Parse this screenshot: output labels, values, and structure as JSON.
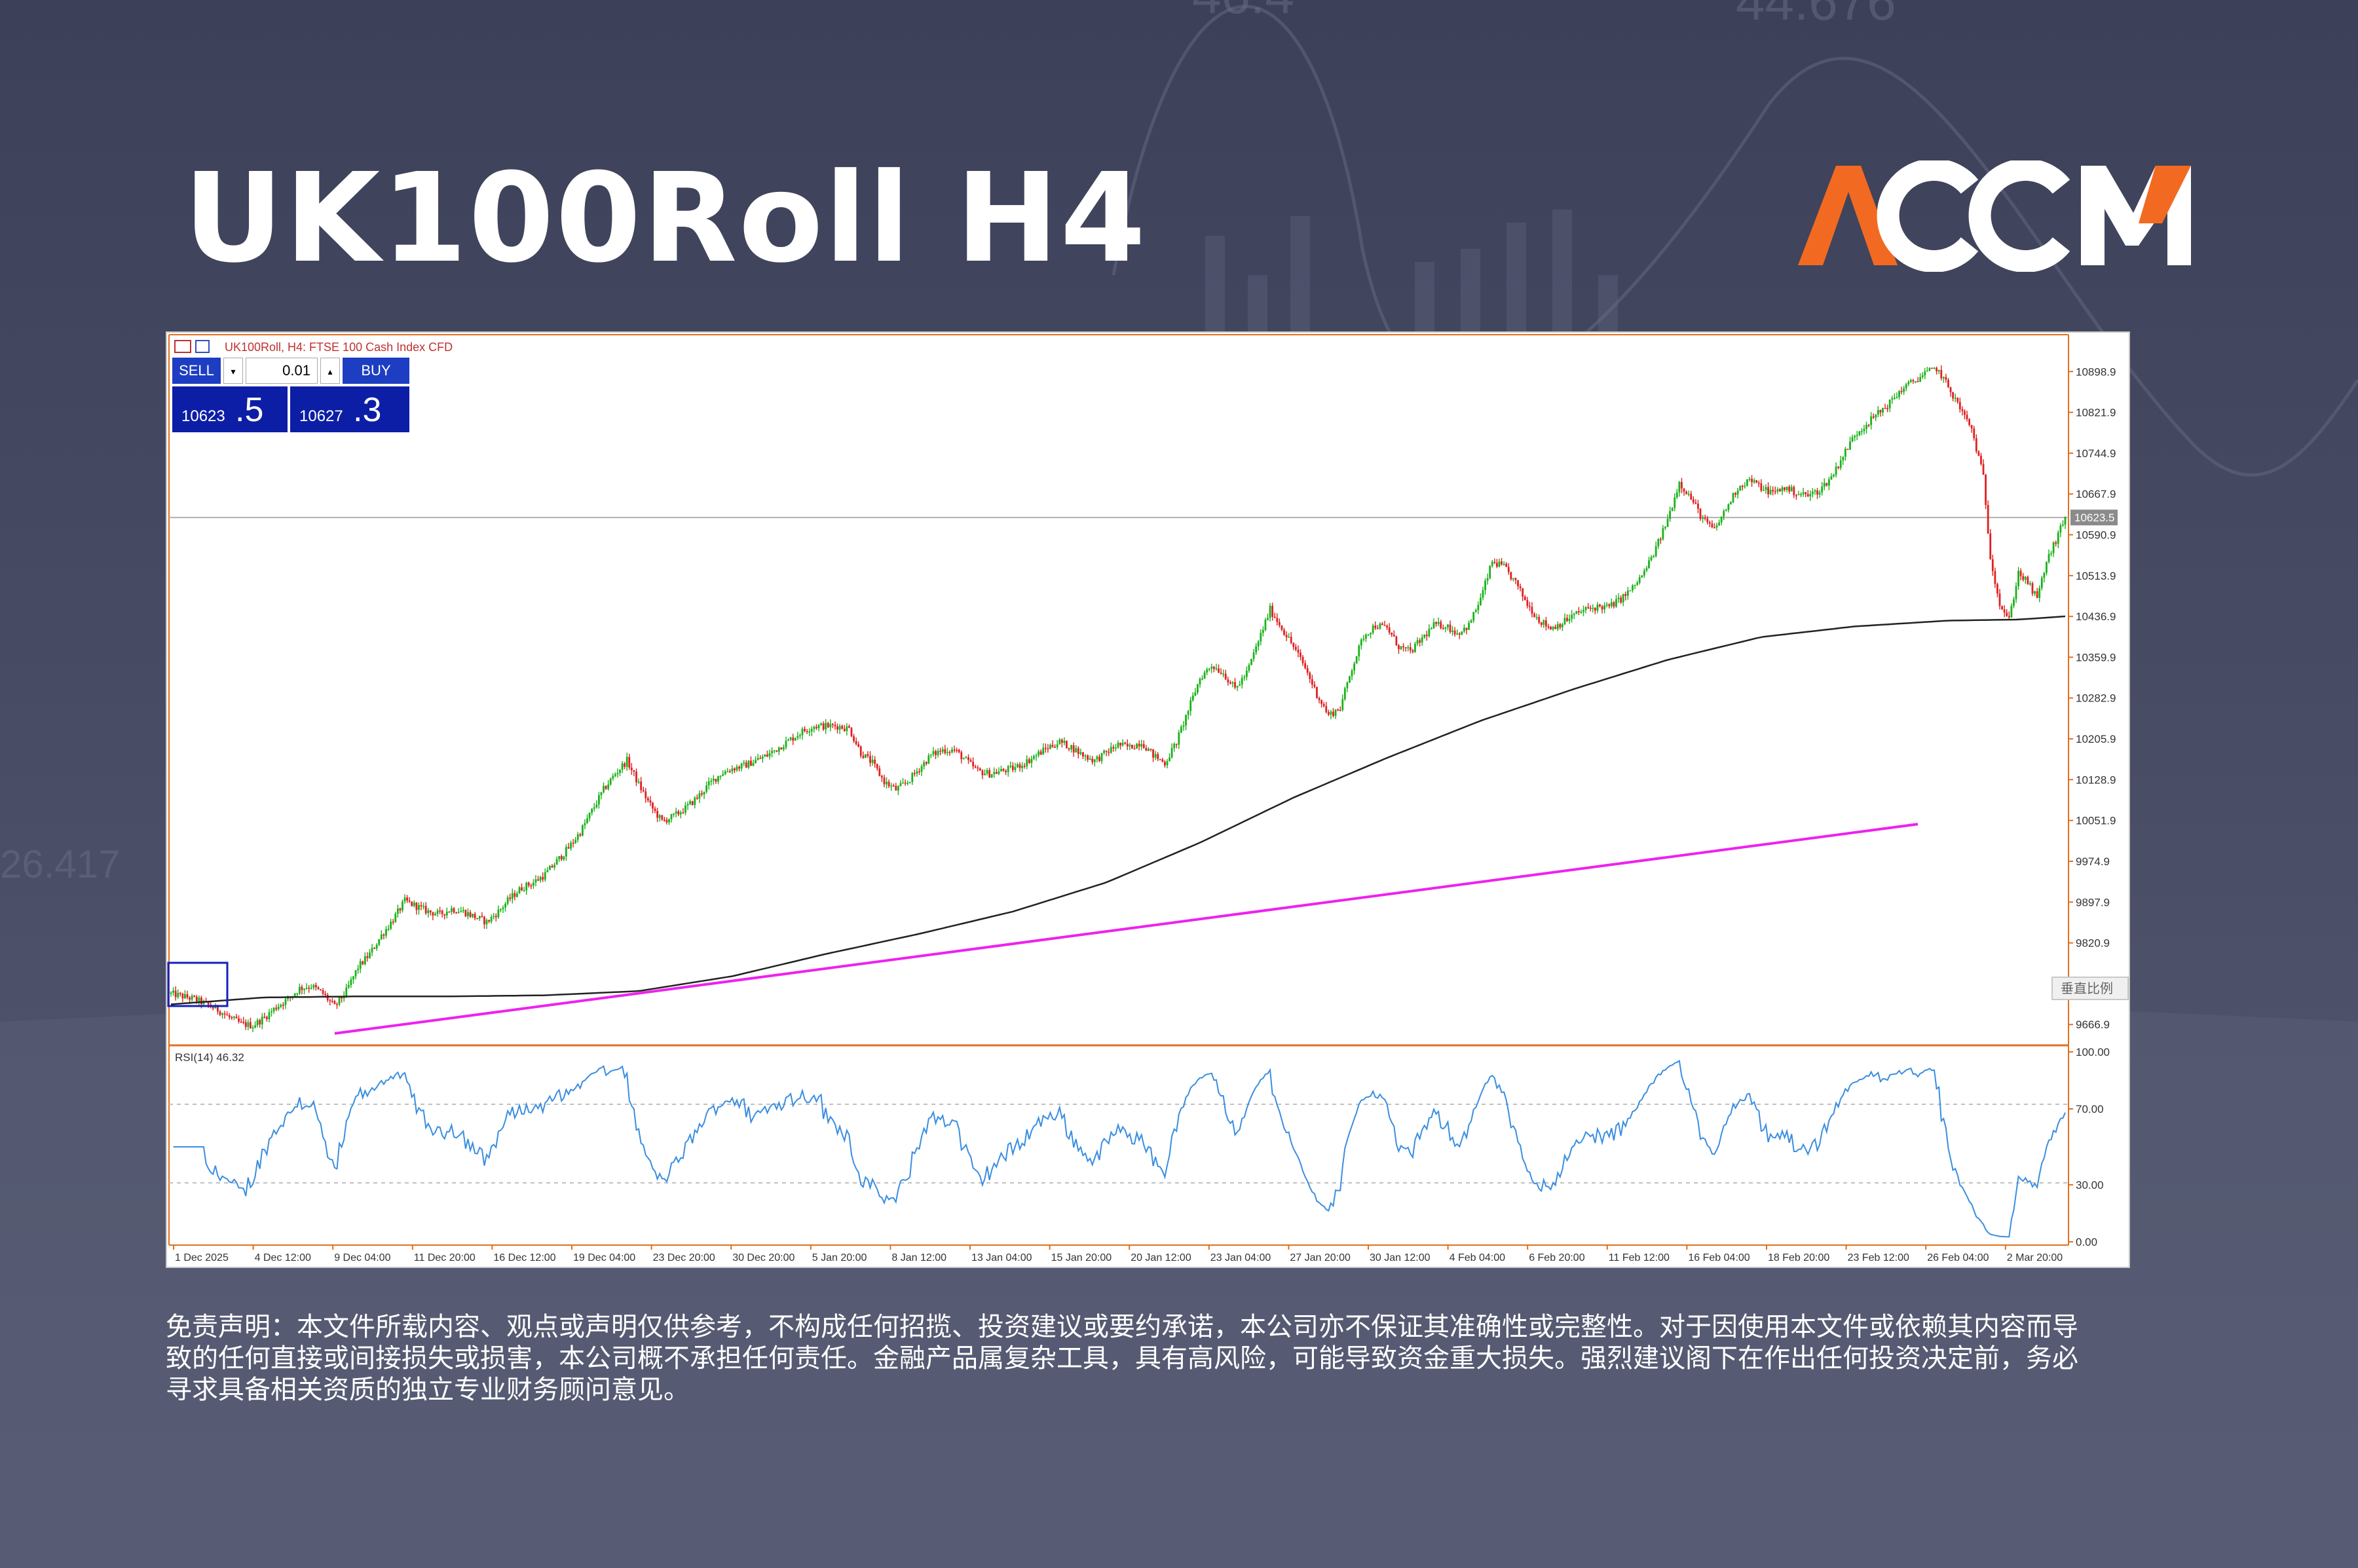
{
  "header": {
    "title": "UK100Roll H4",
    "logo_text": "ACCM",
    "logo_color": "#f26a21"
  },
  "chart_window": {
    "caption": "UK100Roll, H4:  FTSE 100 Cash Index CFD",
    "sell_label": "SELL",
    "buy_label": "BUY",
    "lot_value": "0.01",
    "sell_price_small": "10623",
    "sell_price_big": ".5",
    "buy_price_small": "10627",
    "buy_price_big": ".3",
    "current_price_label": "10623.5",
    "scale_button": "垂直比例",
    "rsi_label": "RSI(14) 46.32"
  },
  "chart_data": [
    {
      "type": "candlestick",
      "symbol": "UK100Roll",
      "timeframe": "H4",
      "price_axis_ticks": [
        "10898.9",
        "10821.9",
        "10744.9",
        "10667.9",
        "10590.9",
        "10513.9",
        "10436.9",
        "10359.9",
        "10282.9",
        "10205.9",
        "10128.9",
        "10051.9",
        "9974.9",
        "9897.9",
        "9820.9",
        "9743.9",
        "9666.9"
      ],
      "time_axis_ticks": [
        "1 Dec 2025",
        "4 Dec 12:00",
        "9 Dec 04:00",
        "11 Dec 20:00",
        "16 Dec 12:00",
        "19 Dec 04:00",
        "23 Dec 20:00",
        "30 Dec 20:00",
        "5 Jan 20:00",
        "8 Jan 12:00",
        "13 Jan 04:00",
        "15 Jan 20:00",
        "20 Jan 12:00",
        "23 Jan 04:00",
        "27 Jan 20:00",
        "30 Jan 12:00",
        "4 Feb 04:00",
        "6 Feb 20:00",
        "11 Feb 12:00",
        "16 Feb 04:00",
        "18 Feb 20:00",
        "23 Feb 12:00",
        "26 Feb 04:00",
        "2 Mar 20:00"
      ],
      "ylim": [
        9640,
        10940
      ],
      "current_price": 10623.5,
      "close_path": [
        [
          0,
          9725
        ],
        [
          5,
          9720
        ],
        [
          10,
          9715
        ],
        [
          15,
          9705
        ],
        [
          20,
          9695
        ],
        [
          25,
          9680
        ],
        [
          30,
          9668
        ],
        [
          35,
          9665
        ],
        [
          40,
          9680
        ],
        [
          45,
          9700
        ],
        [
          50,
          9715
        ],
        [
          55,
          9735
        ],
        [
          60,
          9740
        ],
        [
          65,
          9725
        ],
        [
          70,
          9700
        ],
        [
          75,
          9730
        ],
        [
          80,
          9775
        ],
        [
          85,
          9800
        ],
        [
          90,
          9835
        ],
        [
          95,
          9865
        ],
        [
          100,
          9900
        ],
        [
          105,
          9890
        ],
        [
          110,
          9880
        ],
        [
          115,
          9875
        ],
        [
          120,
          9885
        ],
        [
          125,
          9880
        ],
        [
          130,
          9870
        ],
        [
          135,
          9860
        ],
        [
          140,
          9880
        ],
        [
          145,
          9905
        ],
        [
          150,
          9925
        ],
        [
          155,
          9935
        ],
        [
          160,
          9950
        ],
        [
          165,
          9975
        ],
        [
          170,
          10000
        ],
        [
          175,
          10030
        ],
        [
          180,
          10070
        ],
        [
          185,
          10110
        ],
        [
          190,
          10140
        ],
        [
          195,
          10165
        ],
        [
          200,
          10120
        ],
        [
          205,
          10080
        ],
        [
          210,
          10050
        ],
        [
          215,
          10060
        ],
        [
          220,
          10075
        ],
        [
          225,
          10095
        ],
        [
          230,
          10120
        ],
        [
          235,
          10140
        ],
        [
          240,
          10150
        ],
        [
          245,
          10155
        ],
        [
          250,
          10165
        ],
        [
          255,
          10175
        ],
        [
          260,
          10190
        ],
        [
          265,
          10205
        ],
        [
          270,
          10220
        ],
        [
          275,
          10230
        ],
        [
          280,
          10230
        ],
        [
          285,
          10230
        ],
        [
          290,
          10225
        ],
        [
          295,
          10180
        ],
        [
          300,
          10160
        ],
        [
          305,
          10125
        ],
        [
          310,
          10110
        ],
        [
          315,
          10125
        ],
        [
          320,
          10150
        ],
        [
          325,
          10175
        ],
        [
          330,
          10185
        ],
        [
          335,
          10185
        ],
        [
          340,
          10165
        ],
        [
          345,
          10145
        ],
        [
          350,
          10140
        ],
        [
          355,
          10145
        ],
        [
          360,
          10150
        ],
        [
          365,
          10160
        ],
        [
          370,
          10175
        ],
        [
          375,
          10190
        ],
        [
          380,
          10200
        ],
        [
          385,
          10190
        ],
        [
          390,
          10175
        ],
        [
          395,
          10165
        ],
        [
          400,
          10180
        ],
        [
          405,
          10195
        ],
        [
          410,
          10190
        ],
        [
          415,
          10200
        ],
        [
          420,
          10175
        ],
        [
          425,
          10160
        ],
        [
          430,
          10200
        ],
        [
          435,
          10260
        ],
        [
          440,
          10320
        ],
        [
          445,
          10345
        ],
        [
          450,
          10330
        ],
        [
          455,
          10300
        ],
        [
          460,
          10330
        ],
        [
          465,
          10390
        ],
        [
          470,
          10450
        ],
        [
          475,
          10415
        ],
        [
          480,
          10380
        ],
        [
          485,
          10340
        ],
        [
          490,
          10290
        ],
        [
          495,
          10250
        ],
        [
          500,
          10265
        ],
        [
          505,
          10340
        ],
        [
          510,
          10400
        ],
        [
          515,
          10420
        ],
        [
          520,
          10415
        ],
        [
          525,
          10380
        ],
        [
          530,
          10370
        ],
        [
          535,
          10395
        ],
        [
          540,
          10420
        ],
        [
          545,
          10420
        ],
        [
          550,
          10405
        ],
        [
          555,
          10420
        ],
        [
          560,
          10470
        ],
        [
          565,
          10540
        ],
        [
          570,
          10530
        ],
        [
          575,
          10500
        ],
        [
          580,
          10460
        ],
        [
          585,
          10430
        ],
        [
          590,
          10415
        ],
        [
          595,
          10425
        ],
        [
          600,
          10440
        ],
        [
          605,
          10450
        ],
        [
          610,
          10455
        ],
        [
          615,
          10455
        ],
        [
          620,
          10470
        ],
        [
          625,
          10490
        ],
        [
          630,
          10520
        ],
        [
          635,
          10565
        ],
        [
          640,
          10620
        ],
        [
          645,
          10690
        ],
        [
          650,
          10660
        ],
        [
          655,
          10620
        ],
        [
          660,
          10600
        ],
        [
          665,
          10640
        ],
        [
          670,
          10680
        ],
        [
          675,
          10695
        ],
        [
          680,
          10680
        ],
        [
          685,
          10670
        ],
        [
          690,
          10680
        ],
        [
          695,
          10670
        ],
        [
          700,
          10665
        ],
        [
          705,
          10675
        ],
        [
          710,
          10700
        ],
        [
          715,
          10740
        ],
        [
          720,
          10780
        ],
        [
          725,
          10800
        ],
        [
          730,
          10820
        ],
        [
          735,
          10840
        ],
        [
          740,
          10865
        ],
        [
          745,
          10880
        ],
        [
          750,
          10895
        ],
        [
          755,
          10905
        ],
        [
          760,
          10870
        ],
        [
          765,
          10830
        ],
        [
          770,
          10790
        ],
        [
          775,
          10700
        ],
        [
          778,
          10550
        ],
        [
          782,
          10460
        ],
        [
          786,
          10430
        ],
        [
          790,
          10520
        ],
        [
          794,
          10500
        ],
        [
          798,
          10470
        ],
        [
          802,
          10540
        ],
        [
          806,
          10580
        ],
        [
          810,
          10623.5
        ]
      ],
      "moving_average_path": [
        [
          0,
          9705
        ],
        [
          40,
          9718
        ],
        [
          80,
          9720
        ],
        [
          120,
          9720
        ],
        [
          160,
          9722
        ],
        [
          200,
          9730
        ],
        [
          240,
          9758
        ],
        [
          280,
          9800
        ],
        [
          320,
          9838
        ],
        [
          360,
          9880
        ],
        [
          400,
          9935
        ],
        [
          440,
          10010
        ],
        [
          480,
          10095
        ],
        [
          520,
          10170
        ],
        [
          560,
          10240
        ],
        [
          600,
          10300
        ],
        [
          640,
          10355
        ],
        [
          680,
          10398
        ],
        [
          720,
          10418
        ],
        [
          760,
          10429
        ],
        [
          790,
          10431
        ],
        [
          810,
          10437
        ]
      ],
      "trend_line": {
        "from": [
          70,
          9650
        ],
        "to": [
          747,
          10045
        ]
      }
    },
    {
      "type": "line",
      "name": "RSI(14)",
      "current": 46.32,
      "ylim": [
        0,
        100
      ],
      "levels": [
        30,
        70
      ],
      "axis_ticks": [
        "100.00",
        "70.00",
        "30.00",
        "0.00"
      ]
    }
  ],
  "disclaimer": {
    "line1": "免责声明：本文件所载内容、观点或声明仅供参考，不构成任何招揽、投资建议或要约承诺，本公司亦不保证其准确性或完整性。对于因使用本文件或依赖其内容而导",
    "line2": "致的任何直接或间接损失或损害，本公司概不承担任何责任。金融产品属复杂工具，具有高风险，可能导致资金重大损失。强烈建议阁下在作出任何投资决定前，务必",
    "line3": "寻求具备相关资质的独立专业财务顾问意见。"
  }
}
